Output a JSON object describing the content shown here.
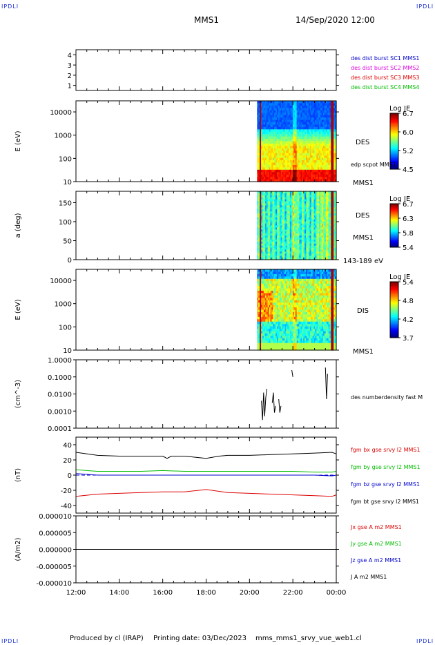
{
  "header": {
    "corner_tl": "IPDLI",
    "corner_tr": "IPDLI",
    "corner_bl": "IPDLI",
    "corner_br": "IPDLI",
    "title": "MMS1",
    "datetime": "14/Sep/2020 12:00"
  },
  "footer": {
    "produced_by": "Produced by cl (IRAP)",
    "printing_date": "Printing date: 03/Dec/2023",
    "filename": "mms_mms1_srvy_vue_web1.cl"
  },
  "colors": {
    "blue": "#0000cc",
    "magenta": "#dd00dd",
    "red": "#dd0000",
    "green": "#00bb00",
    "black": "#000000"
  },
  "chart_data": [
    {
      "type": "line",
      "panel": "burst-availability",
      "xlabel": "",
      "ylabel": "",
      "yticks": [
        "1",
        "2",
        "3",
        "4"
      ],
      "ylim": [
        0.5,
        4.5
      ],
      "legend_placement": "right",
      "legend": [
        {
          "label": "des dist burst SC1 MMS1",
          "color": "#0000cc"
        },
        {
          "label": "des dist burst SC2 MMS2",
          "color": "#dd00dd"
        },
        {
          "label": "des dist burst SC3 MMS3",
          "color": "#dd0000"
        },
        {
          "label": "des dist burst SC4 MMS4",
          "color": "#00bb00"
        }
      ],
      "series": []
    },
    {
      "type": "heatmap",
      "panel": "des-energy-spectrogram",
      "ylabel": "E (eV)",
      "yscale": "log",
      "yticks": [
        "10",
        "100",
        "1000",
        "10000"
      ],
      "ylim": [
        10,
        30000
      ],
      "data_start_hour": 20.35,
      "instrument": "DES",
      "spacecraft": "MMS1",
      "overlay_label": "edp scpot MMS1",
      "colorbar": {
        "title": "Log JE",
        "ticks": [
          "6.7",
          "6.0",
          "5.2",
          "4.5"
        ],
        "range": [
          4.5,
          6.7
        ]
      }
    },
    {
      "type": "heatmap",
      "panel": "des-pitch-angle",
      "ylabel": "a (deg)",
      "yticks": [
        "0",
        "50",
        "100",
        "150"
      ],
      "ylim": [
        0,
        180
      ],
      "data_start_hour": 20.35,
      "instrument": "DES",
      "spacecraft": "MMS1",
      "energy_range": "143-189 eV",
      "colorbar": {
        "title": "Log JE",
        "ticks": [
          "6.7",
          "6.3",
          "5.8",
          "5.4"
        ],
        "range": [
          5.4,
          6.7
        ]
      }
    },
    {
      "type": "heatmap",
      "panel": "dis-energy-spectrogram",
      "ylabel": "E (eV)",
      "yscale": "log",
      "yticks": [
        "10",
        "100",
        "1000",
        "10000"
      ],
      "ylim": [
        10,
        30000
      ],
      "data_start_hour": 20.35,
      "instrument": "DIS",
      "spacecraft": "MMS1",
      "colorbar": {
        "title": "Log JE",
        "ticks": [
          "5.4",
          "4.8",
          "4.2",
          "3.7"
        ],
        "range": [
          3.7,
          5.4
        ]
      }
    },
    {
      "type": "line",
      "panel": "density",
      "ylabel": "(cm^-3)",
      "yscale": "log",
      "yticks": [
        "0.0001",
        "0.0010",
        "0.0100",
        "0.1000",
        "1.0000"
      ],
      "ylim": [
        0.0001,
        1.0
      ],
      "legend_placement": "right",
      "series": [
        {
          "name": "des numberdensity fast M",
          "color": "#000000",
          "segments": [
            {
              "x": [
                20.55,
                20.6,
                20.65,
                20.7,
                20.75,
                20.8
              ],
              "y": [
                0.004,
                0.0003,
                0.012,
                0.0005,
                0.006,
                0.02
              ]
            },
            {
              "x": [
                21.05,
                21.1,
                21.15,
                21.2
              ],
              "y": [
                0.003,
                0.012,
                0.0008,
                0.002
              ]
            },
            {
              "x": [
                21.35,
                21.4,
                21.45
              ],
              "y": [
                0.005,
                0.0008,
                0.002
              ]
            },
            {
              "x": [
                21.95,
                22.0
              ],
              "y": [
                0.25,
                0.1
              ]
            },
            {
              "x": [
                23.5,
                23.55,
                23.6
              ],
              "y": [
                0.35,
                0.005,
                0.15
              ]
            }
          ]
        }
      ]
    },
    {
      "type": "line",
      "panel": "magnetic-field",
      "ylabel": "(nT)",
      "yticks": [
        "-40",
        "-20",
        "0",
        "20",
        "40"
      ],
      "ylim": [
        -50,
        50
      ],
      "legend_placement": "right",
      "series": [
        {
          "name": "fgm bx gse srvy l2 MMS1",
          "color": "#dd0000",
          "x": [
            12,
            13,
            14,
            15,
            16,
            17,
            18,
            19,
            20,
            21,
            22,
            23,
            23.8,
            24
          ],
          "y": [
            -28,
            -25,
            -24,
            -23,
            -22,
            -22,
            -19,
            -23,
            -24,
            -25,
            -26,
            -27,
            -28,
            -26
          ]
        },
        {
          "name": "fgm by gse srvy l2 MMS1",
          "color": "#00bb00",
          "x": [
            12,
            13,
            14,
            15,
            16,
            17,
            18,
            19,
            20,
            21,
            22,
            23,
            23.8,
            24
          ],
          "y": [
            7,
            5,
            5,
            5,
            6,
            5,
            5,
            5,
            5,
            5,
            5,
            4,
            4,
            5
          ]
        },
        {
          "name": "fgm bz gse srvy l2 MMS1",
          "color": "#0000cc",
          "x": [
            12,
            13,
            14,
            15,
            16,
            17,
            18,
            19,
            20,
            21,
            22,
            23,
            23.8,
            24
          ],
          "y": [
            2,
            0,
            0,
            0,
            0,
            0,
            0,
            0,
            0,
            0,
            0,
            0,
            -1,
            0
          ]
        },
        {
          "name": "fgm bt gse srvy l2 MMS1",
          "color": "#000000",
          "x": [
            12,
            13,
            14,
            15,
            16,
            16.2,
            16.4,
            17,
            18,
            18.6,
            19,
            20,
            21,
            22,
            23,
            23.8,
            24
          ],
          "y": [
            30,
            26,
            25,
            25,
            25,
            22,
            25,
            25,
            22,
            25,
            26,
            26,
            27,
            28,
            29,
            30,
            28
          ]
        }
      ]
    },
    {
      "type": "line",
      "panel": "current-density",
      "ylabel": "(A/m2)",
      "yticks": [
        "-0.000010",
        "-0.000005",
        "0.000000",
        "0.000005",
        "0.000010"
      ],
      "ylim": [
        -1e-05,
        1e-05
      ],
      "legend_placement": "right",
      "series": [
        {
          "name": "Jx gse A m2 MMS1",
          "color": "#dd0000",
          "x": [
            12,
            24
          ],
          "y": [
            0,
            0
          ]
        },
        {
          "name": "Jy gse A m2 MMS1",
          "color": "#00bb00",
          "x": [
            12,
            24
          ],
          "y": [
            0,
            0
          ]
        },
        {
          "name": "Jz gse A m2 MMS1",
          "color": "#0000cc",
          "x": [
            12,
            24
          ],
          "y": [
            0,
            0
          ]
        },
        {
          "name": "J A m2 MMS1",
          "color": "#000000",
          "x": [
            12,
            24
          ],
          "y": [
            0,
            0
          ]
        }
      ]
    }
  ],
  "time_axis": {
    "range_hours": [
      12,
      24
    ],
    "tick_labels": [
      "12:00",
      "14:00",
      "16:00",
      "18:00",
      "20:00",
      "22:00",
      "00:00"
    ]
  }
}
